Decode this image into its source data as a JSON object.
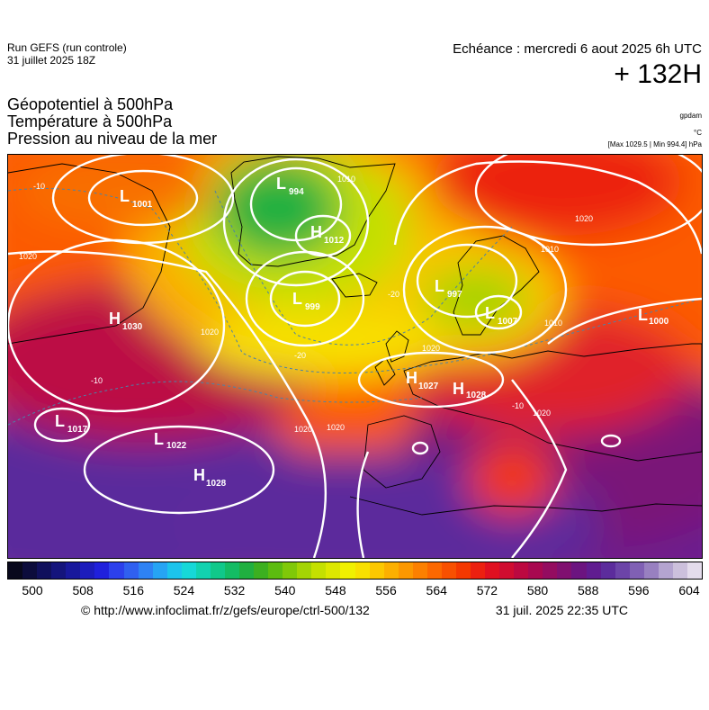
{
  "header": {
    "run_title": "Run GEFS (run controle)",
    "run_date": "31 juillet 2025 18Z",
    "echeance": "Echéance : mercredi 6 aout 2025 6h UTC",
    "lead_time": "+ 132H",
    "fields": [
      "Géopotentiel à 500hPa",
      "Température à 500hPa",
      "Pression au niveau de la mer"
    ],
    "unit_geopotential": "gpdam",
    "unit_temperature": "°C",
    "max_min_pressure": "[Max 1029.5 | Min 994.4] hPa"
  },
  "map": {
    "pressure_systems": [
      {
        "type": "L",
        "value": "1001"
      },
      {
        "type": "L",
        "value": "994"
      },
      {
        "type": "H",
        "value": "1012"
      },
      {
        "type": "L",
        "value": "999"
      },
      {
        "type": "L",
        "value": "997"
      },
      {
        "type": "L",
        "value": "1007"
      },
      {
        "type": "H",
        "value": "1030"
      },
      {
        "type": "L",
        "value": "1000"
      },
      {
        "type": "H",
        "value": "1027"
      },
      {
        "type": "H",
        "value": "1028"
      },
      {
        "type": "L",
        "value": "1017"
      },
      {
        "type": "L",
        "value": "1022"
      },
      {
        "type": "H",
        "value": "1028"
      }
    ],
    "isobar_labels": [
      "1020",
      "1010",
      "1020",
      "1010",
      "1020",
      "1020",
      "1020",
      "1020",
      "1010",
      "1020"
    ],
    "temperature_labels": [
      "-10",
      "-20",
      "-20",
      "-10",
      "-10"
    ]
  },
  "colorbar": {
    "colors": [
      "#08081c",
      "#0c0c3c",
      "#10105c",
      "#14147c",
      "#18189c",
      "#1c1cbc",
      "#2020dc",
      "#2c40ec",
      "#3060f0",
      "#2e82f4",
      "#26a4f4",
      "#1cc4ec",
      "#16d8d8",
      "#12d2b0",
      "#10c88a",
      "#14bc64",
      "#20b040",
      "#3cb020",
      "#5cbc10",
      "#80c808",
      "#a4d404",
      "#c4e000",
      "#dce800",
      "#f0f000",
      "#f8e000",
      "#fcc800",
      "#fcb000",
      "#fc9800",
      "#fc8000",
      "#fc6800",
      "#f85000",
      "#f43800",
      "#ec2010",
      "#e01020",
      "#d00c30",
      "#bc0840",
      "#a80850",
      "#940c60",
      "#801070",
      "#6c1480",
      "#601c90",
      "#5c2c9c",
      "#6c44a8",
      "#8060b4",
      "#9880c0",
      "#b4a4d0",
      "#ccc0dc",
      "#e4dcec"
    ],
    "tick_labels": [
      "500",
      "508",
      "516",
      "524",
      "532",
      "540",
      "548",
      "556",
      "564",
      "572",
      "580",
      "588",
      "596",
      "604"
    ]
  },
  "footer": {
    "source": "© http://www.infoclimat.fr/z/gefs/europe/ctrl-500/132",
    "generated": "31 juil. 2025 22:35 UTC"
  }
}
